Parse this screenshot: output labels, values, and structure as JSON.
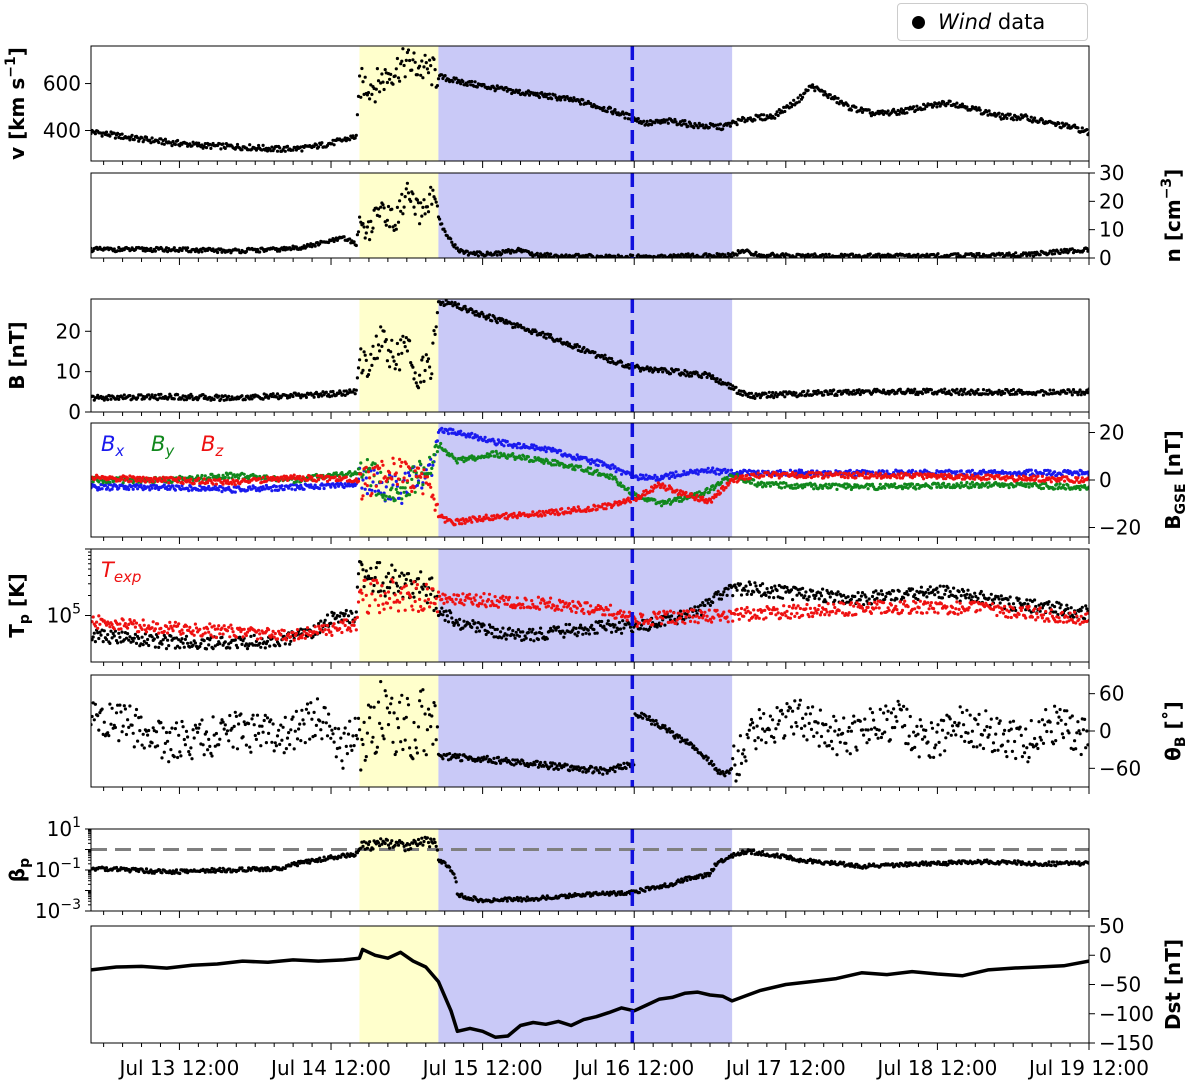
{
  "legend": {
    "marker": "filled-circle",
    "name_italic": "Wind",
    "name_rest": " data"
  },
  "chart_data": {
    "type": "scatter",
    "x_axis": {
      "unit": "hours since Jul 13 00:00",
      "range_hours": [
        -2,
        156
      ],
      "tick_labels": [
        "Jul 13 12:00",
        "Jul 14 12:00",
        "Jul 15 12:00",
        "Jul 16 12:00",
        "Jul 17 12:00",
        "Jul 18 12:00",
        "Jul 19 12:00"
      ],
      "tick_hours": [
        12,
        36,
        60,
        84,
        108,
        132,
        156
      ],
      "minor_tick_step_hours": 3
    },
    "shaded_regions": [
      {
        "color": "#ffffcc",
        "x_hours": [
          40.5,
          53.0
        ]
      },
      {
        "color": "#c9c9f7",
        "x_hours": [
          53.0,
          99.5
        ]
      }
    ],
    "vertical_line": {
      "x_hours": [
        83.7
      ],
      "color": "#1010dd",
      "style": "dashed"
    },
    "panels": [
      {
        "id": "v",
        "ylabel": "v [km s",
        "ylabel_sup": "−1",
        "ylabel_end": "]",
        "ylabel_side": "left",
        "yscale": "linear",
        "ylim": [
          270,
          760
        ],
        "ytick_values": [
          400,
          600
        ],
        "ytick_labels": [
          "400",
          "600"
        ],
        "series": [
          {
            "color": "#000000",
            "style": "dots",
            "x": [
              -2,
              4,
              10,
              16,
              22,
              28,
              32,
              36,
              38,
              40,
              40.5,
              43,
              46,
              48,
              52,
              53,
              56,
              60,
              64,
              68,
              72,
              76,
              78,
              82,
              86,
              90,
              94,
              98,
              99.5,
              102,
              106,
              110,
              112,
              114,
              118,
              122,
              126,
              130,
              134,
              138,
              142,
              146,
              150,
              154,
              156
            ],
            "y": [
              395,
              370,
              350,
              335,
              330,
              320,
              325,
              345,
              360,
              375,
              600,
              590,
              660,
              690,
              650,
              630,
              610,
              590,
              570,
              555,
              540,
              520,
              505,
              470,
              430,
              440,
              420,
              415,
              430,
              450,
              460,
              530,
              590,
              560,
              500,
              470,
              480,
              500,
              520,
              490,
              460,
              455,
              430,
              410,
              390
            ]
          }
        ]
      },
      {
        "id": "n",
        "ylabel": "n [cm",
        "ylabel_sup": "−3",
        "ylabel_end": "]",
        "ylabel_side": "right",
        "yscale": "linear",
        "ylim": [
          0,
          30
        ],
        "ytick_values": [
          0,
          10,
          20,
          30
        ],
        "ytick_labels": [
          "0",
          "10",
          "20",
          "30"
        ],
        "series": [
          {
            "color": "#000000",
            "style": "dots",
            "x": [
              -2,
              10,
              20,
              28,
              32,
              36,
              38,
              40,
              40.5,
              42,
              44,
              46,
              48,
              50,
              52,
              53,
              54,
              56,
              58,
              62,
              66,
              68,
              74,
              82,
              90,
              99.5,
              101,
              104,
              110,
              120,
              134,
              146,
              156
            ],
            "y": [
              3,
              3,
              2.5,
              3,
              4,
              6,
              7,
              5,
              12,
              10,
              18,
              12,
              23,
              15,
              22,
              14,
              9,
              3,
              1.5,
              1.5,
              3,
              1.2,
              0.6,
              0.4,
              0.6,
              1,
              2.5,
              1,
              0.8,
              0.7,
              0.8,
              1.2,
              3
            ]
          }
        ]
      },
      {
        "id": "B",
        "ylabel": "B [nT]",
        "ylabel_side": "left",
        "yscale": "linear",
        "ylim": [
          0,
          28
        ],
        "ytick_values": [
          0,
          10,
          20
        ],
        "ytick_labels": [
          "0",
          "10",
          "20"
        ],
        "series": [
          {
            "color": "#000000",
            "style": "dots",
            "x": [
              -2,
              10,
              20,
              30,
              36,
              40,
              40.5,
              42,
              44,
              46,
              48,
              50,
              52,
              53,
              55,
              60,
              70,
              80,
              84,
              90,
              96,
              99.5,
              102,
              110,
              120,
              130,
              140,
              150,
              156
            ],
            "y": [
              3.5,
              3.8,
              3.5,
              4,
              4.5,
              5,
              14,
              12,
              18,
              13,
              16,
              9,
              12,
              27,
              27,
              24,
              19,
              13,
              11,
              10,
              9,
              6,
              4,
              4.5,
              5,
              5,
              5,
              4.8,
              5
            ]
          }
        ]
      },
      {
        "id": "BGSE",
        "ylabel": "B",
        "ylabel_sub": "GSE",
        "ylabel_end": " [nT]",
        "ylabel_side": "right",
        "yscale": "linear",
        "ylim": [
          -24,
          24
        ],
        "ytick_values": [
          -20,
          0,
          20
        ],
        "ytick_labels": [
          "−20",
          "0",
          "20"
        ],
        "annotations": [
          {
            "main": "B",
            "sub": "x",
            "color": "#1a1aee"
          },
          {
            "main": "B",
            "sub": "y",
            "color": "#11881d"
          },
          {
            "main": "B",
            "sub": "z",
            "color": "#ee1111"
          }
        ],
        "series": [
          {
            "name": "Bx",
            "color": "#1a1aee",
            "style": "dots",
            "x": [
              -2,
              10,
              20,
              30,
              40,
              40.5,
              46,
              52,
              53,
              56,
              62,
              70,
              80,
              84,
              88,
              92,
              96,
              99.5,
              104,
              120,
              140,
              156
            ],
            "y": [
              -3,
              -3,
              -4,
              -3,
              -2,
              2,
              -5,
              4,
              21,
              20,
              16,
              13,
              6,
              1,
              1,
              3,
              4,
              3,
              3,
              3,
              3,
              3
            ]
          },
          {
            "name": "By",
            "color": "#11881d",
            "style": "dots",
            "x": [
              -2,
              10,
              20,
              30,
              40,
              40.5,
              46,
              52,
              53,
              56,
              62,
              70,
              80,
              84,
              88,
              92,
              96,
              99.5,
              104,
              120,
              140,
              156
            ],
            "y": [
              0,
              0,
              2,
              0,
              3,
              5,
              -5,
              6,
              15,
              8,
              11,
              8,
              2,
              -6,
              -10,
              -8,
              -4,
              2,
              -2,
              -3,
              -2,
              -3
            ]
          },
          {
            "name": "Bz",
            "color": "#ee1111",
            "style": "dots",
            "x": [
              -2,
              10,
              20,
              30,
              40,
              40.5,
              46,
              52,
              53,
              55,
              60,
              70,
              80,
              84,
              88,
              92,
              96,
              99.5,
              104,
              120,
              140,
              156
            ],
            "y": [
              1,
              0,
              -1,
              1,
              0,
              -2,
              3,
              -1,
              -15,
              -18,
              -16,
              -14,
              -11,
              -8,
              -2,
              -6,
              -9,
              0,
              2,
              2,
              1,
              0
            ]
          }
        ]
      },
      {
        "id": "Tp",
        "ylabel": "T",
        "ylabel_sub": "p",
        "ylabel_end": " [K]",
        "ylabel_side": "left",
        "yscale": "log",
        "ylim": [
          20000,
          1000000
        ],
        "ytick_values": [
          100000
        ],
        "ytick_labels": [
          "10"
        ],
        "ytick_label_sup": "5",
        "annotations": [
          {
            "main": "T",
            "sub": "exp",
            "color": "#ee1111"
          }
        ],
        "series": [
          {
            "name": "Tp",
            "color": "#000000",
            "style": "dots",
            "x": [
              -2,
              10,
              20,
              28,
              34,
              36,
              40,
              40.5,
              44,
              48,
              52,
              53,
              56,
              60,
              68,
              74,
              80,
              84,
              88,
              94,
              99.5,
              102,
              108,
              114,
              120,
              126,
              132,
              138,
              144,
              150,
              156
            ],
            "y": [
              50000,
              40000,
              38000,
              42000,
              60000,
              90000,
              100000,
              500000,
              350000,
              300000,
              250000,
              120000,
              80000,
              60000,
              50000,
              60000,
              70000,
              65000,
              80000,
              110000,
              250000,
              260000,
              220000,
              200000,
              180000,
              200000,
              230000,
              190000,
              150000,
              130000,
              110000
            ]
          },
          {
            "name": "Texp",
            "color": "#ee1111",
            "style": "dots",
            "x": [
              -2,
              10,
              20,
              30,
              36,
              40,
              40.5,
              46,
              52,
              53,
              60,
              70,
              80,
              84,
              90,
              99.5,
              104,
              110,
              120,
              130,
              140,
              150,
              156
            ],
            "y": [
              80000,
              65000,
              57000,
              52000,
              62000,
              75000,
              190000,
              200000,
              200000,
              185000,
              170000,
              150000,
              120000,
              85000,
              95000,
              100000,
              110000,
              115000,
              130000,
              135000,
              125000,
              100000,
              90000
            ]
          }
        ]
      },
      {
        "id": "thetaB",
        "ylabel": "θ",
        "ylabel_sub": "B",
        "ylabel_end": " [˚]",
        "ylabel_side": "right",
        "yscale": "linear",
        "ylim": [
          -90,
          90
        ],
        "ytick_values": [
          -60,
          0,
          60
        ],
        "ytick_labels": [
          "−60",
          "0",
          "60"
        ],
        "series": [
          {
            "color": "#000000",
            "style": "dots",
            "x": [
              -2,
              4,
              10,
              16,
              22,
              28,
              34,
              38,
              40,
              40.5,
              44,
              48,
              52,
              53,
              60,
              70,
              80,
              84,
              84.1,
              88,
              94,
              98,
              99.5,
              104,
              110,
              116,
              120,
              126,
              130,
              136,
              140,
              146,
              150,
              156
            ],
            "y": [
              20,
              10,
              -20,
              -10,
              0,
              -10,
              20,
              -30,
              10,
              -20,
              30,
              0,
              20,
              -40,
              -45,
              -55,
              -65,
              -50,
              30,
              10,
              -30,
              -70,
              -60,
              10,
              20,
              -10,
              0,
              20,
              -20,
              10,
              0,
              -20,
              10,
              -10
            ]
          }
        ]
      },
      {
        "id": "beta",
        "ylabel": "β",
        "ylabel_sub": "p",
        "ylabel_side": "left",
        "yscale": "log",
        "ylim": [
          0.001,
          10
        ],
        "ytick_values": [
          0.001,
          0.1,
          10
        ],
        "ytick_labels": [
          "10",
          "10",
          "10"
        ],
        "ytick_label_sups": [
          "−3",
          "−1",
          "1"
        ],
        "reference_line": {
          "y": 1,
          "color": "#7f7f7f",
          "style": "dashed"
        },
        "series": [
          {
            "color": "#000000",
            "style": "dots",
            "x": [
              -2,
              10,
              20,
              28,
              34,
              38,
              40,
              40.5,
              44,
              48,
              52,
              53,
              56,
              60,
              68,
              76,
              84,
              90,
              96,
              99.5,
              102,
              110,
              120,
              130,
              140,
              150,
              156
            ],
            "y": [
              0.12,
              0.08,
              0.1,
              0.12,
              0.3,
              0.5,
              0.6,
              1.2,
              2,
              1.5,
              2.5,
              0.3,
              0.006,
              0.003,
              0.004,
              0.006,
              0.008,
              0.02,
              0.06,
              0.5,
              0.8,
              0.3,
              0.15,
              0.2,
              0.25,
              0.2,
              0.22
            ]
          }
        ]
      },
      {
        "id": "Dst",
        "ylabel": "Dst [nT]",
        "ylabel_side": "right",
        "yscale": "linear",
        "ylim": [
          -150,
          50
        ],
        "ytick_values": [
          -150,
          -100,
          -50,
          0,
          50
        ],
        "ytick_labels": [
          "−150",
          "−100",
          "−50",
          "0",
          "50"
        ],
        "series": [
          {
            "color": "#000000",
            "style": "line",
            "x": [
              -2,
              2,
              6,
              10,
              14,
              18,
              22,
              26,
              30,
              34,
              38,
              40.5,
              41,
              43,
              45,
              47,
              49,
              51,
              53,
              55,
              56,
              58,
              60,
              62,
              64,
              66,
              68,
              70,
              72,
              74,
              76,
              78,
              80,
              82,
              84,
              86,
              88,
              90,
              92,
              94,
              96,
              98,
              99.5,
              102,
              104,
              108,
              112,
              116,
              120,
              124,
              128,
              132,
              136,
              140,
              144,
              148,
              152,
              156
            ],
            "y": [
              -25,
              -20,
              -19,
              -22,
              -17,
              -15,
              -10,
              -12,
              -8,
              -10,
              -8,
              -5,
              10,
              0,
              -5,
              5,
              -10,
              -20,
              -45,
              -95,
              -130,
              -125,
              -130,
              -140,
              -138,
              -120,
              -115,
              -118,
              -113,
              -120,
              -110,
              -105,
              -98,
              -90,
              -95,
              -85,
              -75,
              -72,
              -65,
              -63,
              -68,
              -70,
              -78,
              -68,
              -60,
              -50,
              -45,
              -40,
              -30,
              -33,
              -28,
              -32,
              -35,
              -25,
              -22,
              -20,
              -18,
              -10
            ]
          }
        ]
      }
    ]
  }
}
